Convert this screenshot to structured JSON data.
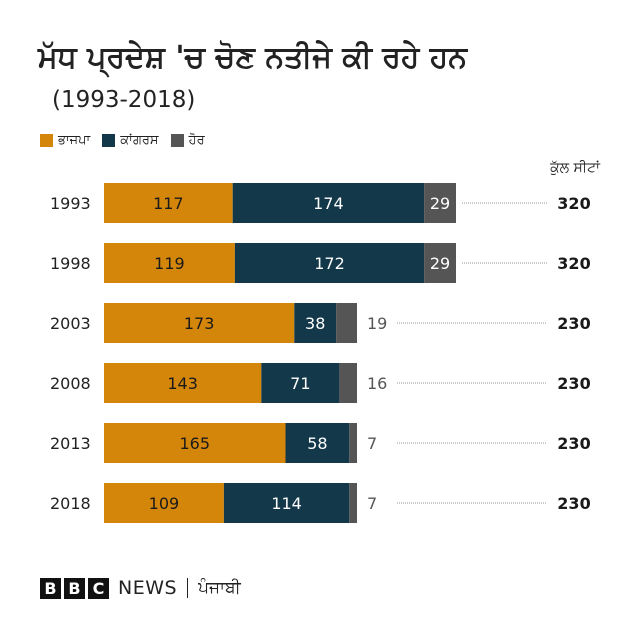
{
  "title": "ਮੱਧ ਪ੍ਰਦੇਸ਼ 'ਚ ਚੋਣ ਨਤੀਜੇ ਕੀ ਰਹੇ ਹਨ",
  "subtitle": "(1993-2018)",
  "total_header": "ਕੁੱਲ ਸੀਟਾਂ",
  "colors": {
    "bjp": "#d4860b",
    "congress": "#13384a",
    "other": "#555555"
  },
  "footer": {
    "bbc_letters": [
      "B",
      "B",
      "C"
    ],
    "news": "NEWS",
    "language": "ਪੰਜਾਬੀ"
  },
  "chart_data": {
    "type": "bar",
    "orientation": "horizontal",
    "stacked": true,
    "categories": [
      "1993",
      "1998",
      "2003",
      "2008",
      "2013",
      "2018"
    ],
    "series": [
      {
        "name": "ਭਾਜਪਾ",
        "values": [
          117,
          119,
          173,
          143,
          165,
          109
        ]
      },
      {
        "name": "ਕਾਂਗਰਸ",
        "values": [
          174,
          172,
          38,
          71,
          58,
          114
        ]
      },
      {
        "name": "ਹੋਰ",
        "values": [
          29,
          29,
          19,
          16,
          7,
          7
        ]
      }
    ],
    "totals": [
      320,
      320,
      230,
      230,
      230,
      230
    ],
    "title": "ਮੱਧ ਪ੍ਰਦੇਸ਼ 'ਚ ਚੋਣ ਨਤੀਜੇ ਕੀ ਰਹੇ ਹਨ",
    "subtitle": "(1993-2018)",
    "legend_position": "top-left",
    "grid": false
  }
}
